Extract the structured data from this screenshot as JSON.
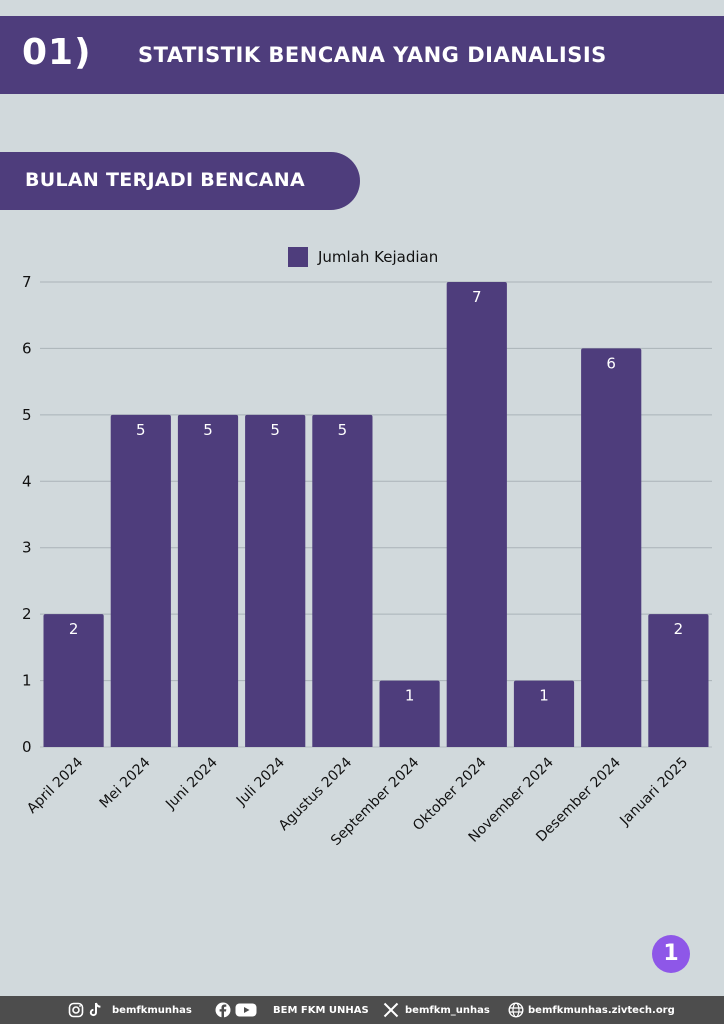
{
  "header": {
    "number": "01)",
    "title": "STATISTIK BENCANA YANG DIANALISIS"
  },
  "section": {
    "title": "BULAN TERJADI BENCANA"
  },
  "colors": {
    "primary": "#4e3d7c",
    "background": "#d1d9dc",
    "badge": "#8e57e8",
    "footer": "#4d4d4d"
  },
  "chart_data": {
    "type": "bar",
    "categories": [
      "April 2024",
      "Mei 2024",
      "Juni 2024",
      "Juli 2024",
      "Agustus 2024",
      "September 2024",
      "Oktober 2024",
      "November 2024",
      "Desember 2024",
      "Januari 2025"
    ],
    "series": [
      {
        "name": "Jumlah Kejadian",
        "values": [
          2,
          5,
          5,
          5,
          5,
          1,
          7,
          1,
          6,
          2
        ]
      }
    ],
    "ylim": [
      0,
      7
    ],
    "yticks": [
      0,
      1,
      2,
      3,
      4,
      5,
      6,
      7
    ],
    "grid": true,
    "legend": "top-center",
    "data_labels": true,
    "bar_color": "#4e3d7c"
  },
  "page_number": "1",
  "footer": {
    "instagram_tiktok": "bemfkmunhas",
    "facebook_youtube": "BEM FKM UNHAS",
    "x": "bemfkm_unhas",
    "website": "bemfkmunhas.zivtech.org",
    "icons": [
      "instagram-icon",
      "tiktok-icon",
      "facebook-icon",
      "youtube-icon",
      "x-icon",
      "globe-icon"
    ]
  }
}
